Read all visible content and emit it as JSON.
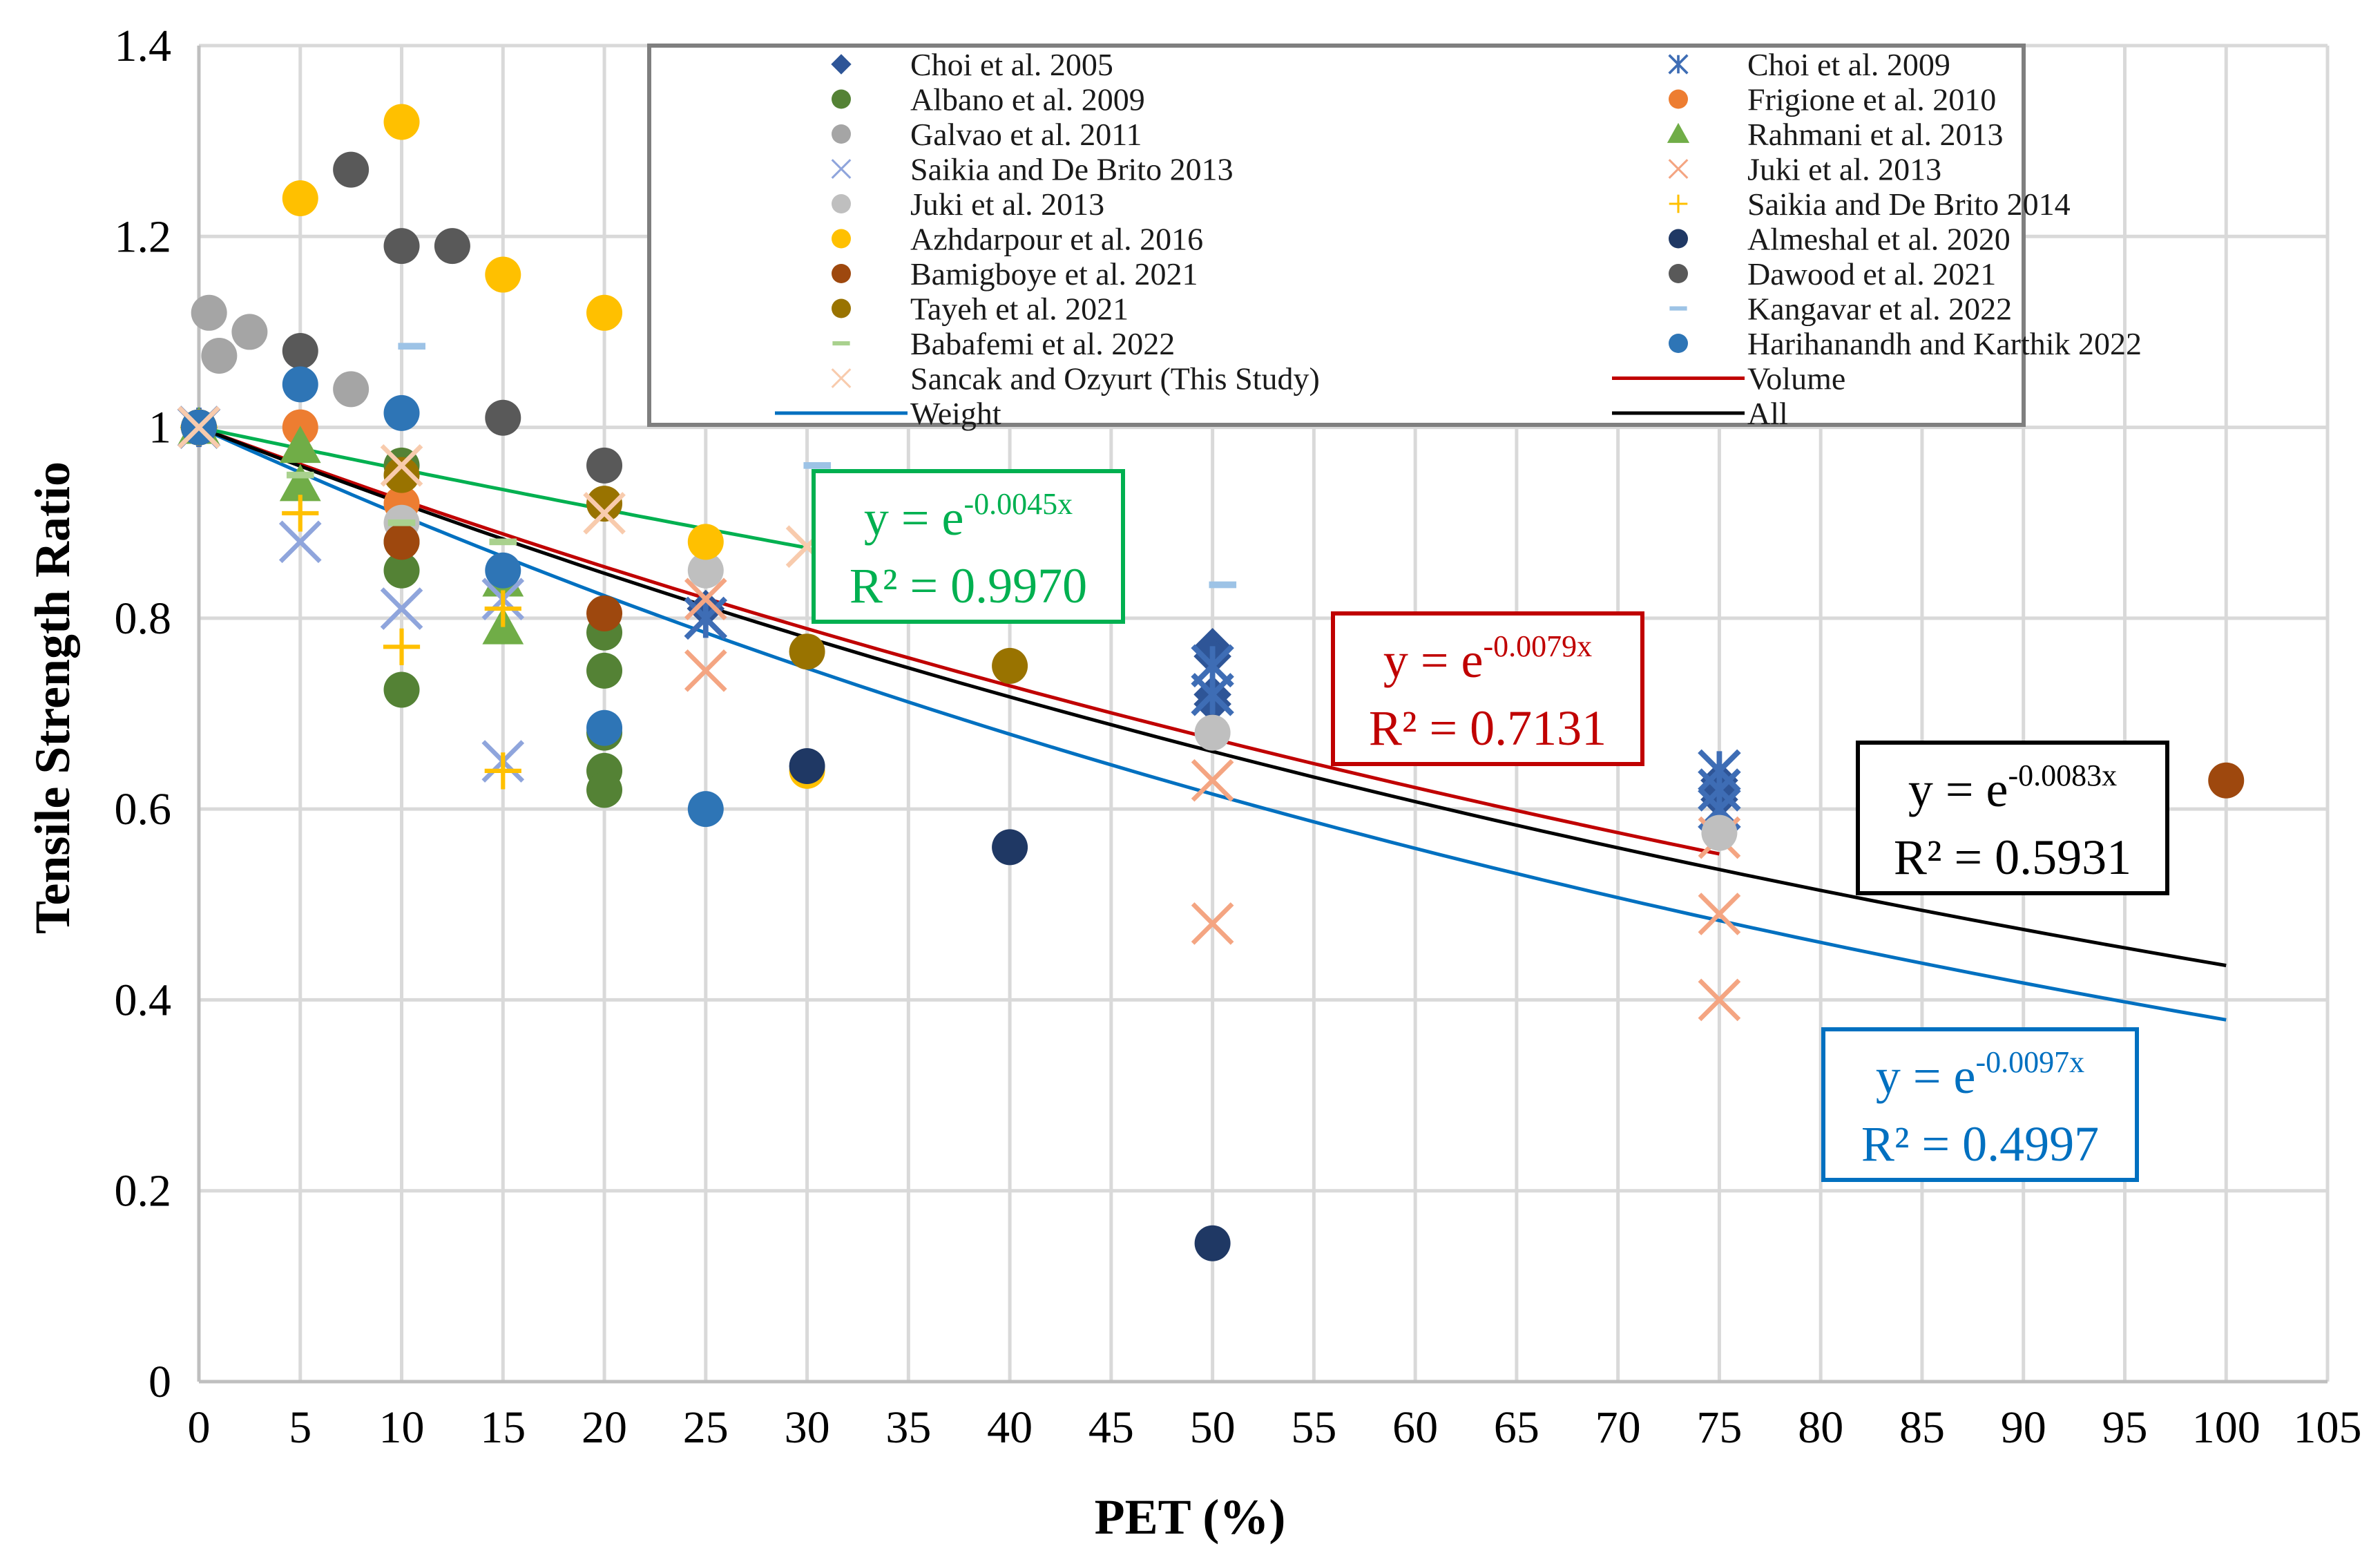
{
  "chart_data": {
    "type": "scatter",
    "title": "",
    "xlabel": "PET (%)",
    "ylabel": "Tensile Strength Ratio",
    "xlim": [
      0,
      105
    ],
    "ylim": [
      0,
      1.4
    ],
    "x_ticks": [
      0,
      5,
      10,
      15,
      20,
      25,
      30,
      35,
      40,
      45,
      50,
      55,
      60,
      65,
      70,
      75,
      80,
      85,
      90,
      95,
      100,
      105
    ],
    "y_ticks": [
      0,
      0.2,
      0.4,
      0.6,
      0.8,
      1,
      1.2,
      1.4
    ],
    "x_tick_labels": [
      "0",
      "5",
      "10",
      "15",
      "20",
      "25",
      "30",
      "35",
      "40",
      "45",
      "50",
      "55",
      "60",
      "65",
      "70",
      "75",
      "80",
      "85",
      "90",
      "95",
      "100",
      "105"
    ],
    "y_tick_labels": [
      "0",
      "0.2",
      "0.4",
      "0.6",
      "0.8",
      "1",
      "1.2",
      "1.4"
    ],
    "grid": true,
    "legend_position": "top-right",
    "series": [
      {
        "name": "Choi et al. 2005",
        "marker": "diamond",
        "color": "#2E5597",
        "points": [
          [
            0,
            1.0
          ],
          [
            25,
            0.81
          ],
          [
            50,
            0.77
          ],
          [
            50,
            0.76
          ],
          [
            50,
            0.72
          ],
          [
            50,
            0.71
          ],
          [
            75,
            0.63
          ],
          [
            75,
            0.62
          ],
          [
            75,
            0.61
          ]
        ]
      },
      {
        "name": "Choi et al. 2009",
        "marker": "star",
        "color": "#3E6DB5",
        "points": [
          [
            0,
            1.0
          ],
          [
            25,
            0.8
          ],
          [
            50,
            0.75
          ],
          [
            50,
            0.72
          ],
          [
            75,
            0.64
          ],
          [
            75,
            0.62
          ],
          [
            75,
            0.6
          ]
        ]
      },
      {
        "name": "Albano et al. 2009",
        "marker": "circle",
        "color": "#548235",
        "points": [
          [
            0,
            1.0
          ],
          [
            10,
            0.96
          ],
          [
            10,
            0.88
          ],
          [
            10,
            0.85
          ],
          [
            10,
            0.725
          ],
          [
            20,
            0.785
          ],
          [
            20,
            0.745
          ],
          [
            20,
            0.68
          ],
          [
            20,
            0.64
          ],
          [
            20,
            0.62
          ]
        ]
      },
      {
        "name": "Frigione et al. 2010",
        "marker": "circle",
        "color": "#ED7D31",
        "points": [
          [
            0,
            1.0
          ],
          [
            5,
            1.0
          ],
          [
            10,
            0.92
          ]
        ]
      },
      {
        "name": "Galvao et al. 2011",
        "marker": "circle",
        "color": "#A5A5A5",
        "points": [
          [
            0.5,
            1.12
          ],
          [
            1,
            1.075
          ],
          [
            2.5,
            1.1
          ],
          [
            7.5,
            1.04
          ]
        ]
      },
      {
        "name": "Rahmani et al. 2013",
        "marker": "triangle",
        "color": "#70AD47",
        "points": [
          [
            0,
            1.0
          ],
          [
            5,
            0.98
          ],
          [
            5,
            0.94
          ],
          [
            15,
            0.84
          ],
          [
            15,
            0.79
          ]
        ]
      },
      {
        "name": "Saikia and De Brito 2013",
        "marker": "x",
        "color": "#8FA5DC",
        "points": [
          [
            0,
            1.0
          ],
          [
            5,
            0.88
          ],
          [
            10,
            0.81
          ],
          [
            15,
            0.82
          ],
          [
            15,
            0.65
          ]
        ]
      },
      {
        "name": "Juki et al. 2013",
        "marker": "x",
        "color": "#F4A582",
        "points": [
          [
            0,
            1.0
          ],
          [
            25,
            0.82
          ],
          [
            25,
            0.745
          ],
          [
            50,
            0.63
          ],
          [
            50,
            0.48
          ],
          [
            75,
            0.57
          ],
          [
            75,
            0.49
          ],
          [
            75,
            0.4
          ]
        ]
      },
      {
        "name": "Juki et al. 2013",
        "marker": "circle",
        "color": "#BFBFBF",
        "points": [
          [
            0,
            1.0
          ],
          [
            10,
            0.9
          ],
          [
            25,
            0.85
          ],
          [
            50,
            0.68
          ],
          [
            75,
            0.575
          ]
        ]
      },
      {
        "name": "Saikia and De Brito 2014",
        "marker": "plus",
        "color": "#FFC000",
        "points": [
          [
            0,
            1.0
          ],
          [
            5,
            0.91
          ],
          [
            10,
            0.77
          ],
          [
            15,
            0.81
          ],
          [
            15,
            0.64
          ]
        ]
      },
      {
        "name": "Azhdarpour et al. 2016",
        "marker": "circle",
        "color": "#FFC000",
        "points": [
          [
            5,
            1.24
          ],
          [
            10,
            1.32
          ],
          [
            15,
            1.16
          ],
          [
            20,
            1.12
          ],
          [
            25,
            0.88
          ],
          [
            30,
            0.64
          ]
        ]
      },
      {
        "name": "Almeshal et al. 2020",
        "marker": "circle",
        "color": "#1F3864",
        "points": [
          [
            0,
            1.0
          ],
          [
            30,
            0.645
          ],
          [
            40,
            0.56
          ],
          [
            50,
            0.145
          ]
        ]
      },
      {
        "name": "Bamigboye et al. 2021",
        "marker": "circle",
        "color": "#9E480E",
        "points": [
          [
            0,
            1.0
          ],
          [
            10,
            0.88
          ],
          [
            20,
            0.805
          ],
          [
            100,
            0.63
          ]
        ]
      },
      {
        "name": "Dawood et al. 2021",
        "marker": "circle",
        "color": "#595959",
        "points": [
          [
            5,
            1.08
          ],
          [
            7.5,
            1.27
          ],
          [
            10,
            1.19
          ],
          [
            12.5,
            1.19
          ],
          [
            15,
            1.01
          ],
          [
            20,
            0.96
          ]
        ]
      },
      {
        "name": "Tayeh et al. 2021",
        "marker": "circle",
        "color": "#997300",
        "points": [
          [
            0,
            1.0
          ],
          [
            10,
            0.95
          ],
          [
            20,
            0.92
          ],
          [
            30,
            0.765
          ],
          [
            40,
            0.75
          ]
        ]
      },
      {
        "name": "Kangavar et al. 2022",
        "marker": "dash",
        "color": "#9DC3E6",
        "points": [
          [
            10.5,
            1.085
          ],
          [
            30.5,
            0.96
          ],
          [
            50.5,
            0.835
          ]
        ]
      },
      {
        "name": "Babafemi et al. 2022",
        "marker": "dash",
        "color": "#A9D18E",
        "points": [
          [
            5,
            0.95
          ],
          [
            10,
            0.9
          ],
          [
            15,
            0.88
          ]
        ]
      },
      {
        "name": "Harihanandh and Karthik 2022",
        "marker": "circle",
        "color": "#2E75B6",
        "points": [
          [
            0,
            1.0
          ],
          [
            5,
            1.045
          ],
          [
            10,
            1.015
          ],
          [
            15,
            0.85
          ],
          [
            20,
            0.685
          ],
          [
            25,
            0.6
          ]
        ]
      },
      {
        "name": "Sancak and Ozyurt (This Study)",
        "marker": "x",
        "color": "#F8CBAD",
        "points": [
          [
            0,
            1.0
          ],
          [
            10,
            0.96
          ],
          [
            20,
            0.91
          ],
          [
            30,
            0.875
          ]
        ]
      }
    ],
    "trendlines": [
      {
        "name": "Volume",
        "color": "#C00000",
        "k": 0.0079,
        "x_range": [
          0,
          75
        ]
      },
      {
        "name": "Weight",
        "color": "#0070C0",
        "k": 0.0097,
        "x_range": [
          0,
          100
        ]
      },
      {
        "name": "All",
        "color": "#000000",
        "k": 0.0083,
        "x_range": [
          0,
          100
        ]
      },
      {
        "name": "",
        "color": "#00B050",
        "k": 0.0045,
        "x_range": [
          0,
          30
        ]
      }
    ],
    "annotations": [
      {
        "id": "green",
        "color": "#00B050",
        "eq_base": "y = e",
        "eq_exp": "-0.0045x",
        "r2": "R² = 0.9970"
      },
      {
        "id": "red",
        "color": "#C00000",
        "eq_base": "y = e",
        "eq_exp": "-0.0079x",
        "r2": "R² = 0.7131"
      },
      {
        "id": "black",
        "color": "#000000",
        "eq_base": "y = e",
        "eq_exp": "-0.0083x",
        "r2": "R² = 0.5931"
      },
      {
        "id": "blue",
        "color": "#0070C0",
        "eq_base": "y = e",
        "eq_exp": "-0.0097x",
        "r2": "R² = 0.4997"
      }
    ],
    "legend": [
      {
        "label": "Choi et al. 2005",
        "marker": "diamond",
        "color": "#2E5597"
      },
      {
        "label": "Choi et al. 2009",
        "marker": "star",
        "color": "#3E6DB5"
      },
      {
        "label": "Albano et al. 2009",
        "marker": "circle",
        "color": "#548235"
      },
      {
        "label": "Frigione et al. 2010",
        "marker": "circle",
        "color": "#ED7D31"
      },
      {
        "label": "Galvao et al. 2011",
        "marker": "circle",
        "color": "#A5A5A5"
      },
      {
        "label": "Rahmani et al. 2013",
        "marker": "triangle",
        "color": "#70AD47"
      },
      {
        "label": "Saikia and De Brito 2013",
        "marker": "x",
        "color": "#8FA5DC"
      },
      {
        "label": "Juki et al. 2013",
        "marker": "x",
        "color": "#F4A582"
      },
      {
        "label": "Juki et al. 2013",
        "marker": "circle",
        "color": "#BFBFBF"
      },
      {
        "label": "Saikia and De Brito 2014",
        "marker": "plus",
        "color": "#FFC000"
      },
      {
        "label": "Azhdarpour et al. 2016",
        "marker": "circle",
        "color": "#FFC000"
      },
      {
        "label": "Almeshal et al. 2020",
        "marker": "circle",
        "color": "#1F3864"
      },
      {
        "label": "Bamigboye et al. 2021",
        "marker": "circle",
        "color": "#9E480E"
      },
      {
        "label": "Dawood et al. 2021",
        "marker": "circle",
        "color": "#595959"
      },
      {
        "label": "Tayeh et al. 2021",
        "marker": "circle",
        "color": "#997300"
      },
      {
        "label": "Kangavar et al. 2022",
        "marker": "dash",
        "color": "#9DC3E6"
      },
      {
        "label": "Babafemi et al. 2022",
        "marker": "dash",
        "color": "#A9D18E"
      },
      {
        "label": "Harihanandh and Karthik 2022",
        "marker": "circle",
        "color": "#2E75B6"
      },
      {
        "label": "Sancak and Ozyurt (This Study)",
        "marker": "x",
        "color": "#F8CBAD"
      },
      {
        "label": "Volume",
        "marker": "line",
        "color": "#C00000"
      },
      {
        "label": "Weight",
        "marker": "line",
        "color": "#0070C0"
      },
      {
        "label": "All",
        "marker": "line",
        "color": "#000000"
      }
    ]
  }
}
